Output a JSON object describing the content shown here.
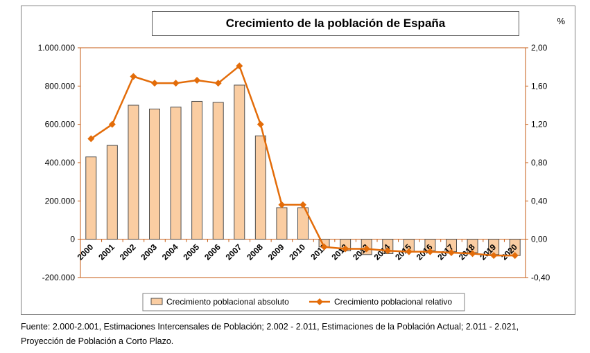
{
  "chart_data": {
    "type": "bar+line",
    "title": "Crecimiento de la población de España",
    "right_axis_unit": "%",
    "categories": [
      "2000",
      "2001",
      "2002",
      "2003",
      "2004",
      "2005",
      "2006",
      "2007",
      "2008",
      "2009",
      "2010",
      "2011",
      "2012",
      "2013",
      "2014",
      "2015",
      "2016",
      "2017",
      "2018",
      "2019",
      "2020"
    ],
    "series": [
      {
        "name": "Crecimiento poblacional absoluto",
        "type": "bar",
        "axis": "left",
        "values": [
          430000,
          490000,
          700000,
          680000,
          690000,
          720000,
          715000,
          805000,
          540000,
          165000,
          165000,
          -40000,
          -60000,
          -80000,
          -75000,
          -65000,
          -60000,
          -65000,
          -70000,
          -80000,
          -85000
        ]
      },
      {
        "name": "Crecimiento poblacional relativo",
        "type": "line",
        "axis": "right",
        "values": [
          1.05,
          1.2,
          1.7,
          1.63,
          1.63,
          1.66,
          1.63,
          1.81,
          1.2,
          0.36,
          0.36,
          -0.08,
          -0.1,
          -0.1,
          -0.12,
          -0.13,
          -0.13,
          -0.14,
          -0.15,
          -0.17,
          -0.17
        ]
      }
    ],
    "left_axis": {
      "min": -200000,
      "max": 1000000,
      "tick_values": [
        1000000,
        800000,
        600000,
        400000,
        200000,
        0,
        -200000
      ],
      "tick_labels": [
        "1.000.000",
        "800.000",
        "600.000",
        "400.000",
        "200.000",
        "0",
        "-200.000"
      ]
    },
    "right_axis": {
      "min": -0.4,
      "max": 2.0,
      "tick_values": [
        2.0,
        1.6,
        1.2,
        0.8,
        0.4,
        0.0,
        -0.4
      ],
      "tick_labels": [
        "2,00",
        "1,60",
        "1,20",
        "0,80",
        "0,40",
        "0,00",
        "-0,40"
      ]
    },
    "grid": false,
    "legend_position": "bottom",
    "colors": {
      "bar_fill": "#FACDA2",
      "bar_stroke": "#4d4d4d",
      "line": "#E36C09",
      "axis": "#C55A11",
      "legend_border": "#808080"
    }
  },
  "footer": {
    "line1": "Fuente: 2.000-2.001, Estimaciones Intercensales de Población; 2.002 - 2.011, Estimaciones de la Población Actual; 2.011 - 2.021,",
    "line2": "Proyección de Población a Corto Plazo."
  }
}
